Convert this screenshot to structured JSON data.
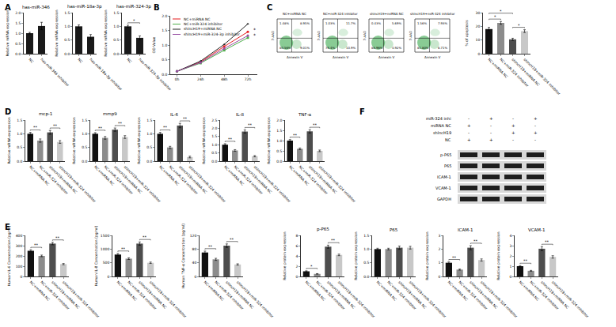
{
  "panel_labels": [
    "A",
    "B",
    "C",
    "D",
    "E",
    "F"
  ],
  "chart_data": [
    {
      "type": "bar",
      "title": "has-miR-346",
      "y_label": "Relative mRNA expression",
      "categories": [
        "NC",
        "has-miR-346 inhibitor"
      ],
      "values": [
        1.0,
        1.35
      ],
      "errors": [
        0.04,
        0.18
      ],
      "colors": [
        "#1a1a1a",
        "#1a1a1a"
      ],
      "ylim": [
        0,
        2
      ],
      "yticks": [
        {
          "value": 0,
          "label": "0.0"
        },
        0.5,
        {
          "value": 1,
          "label": "1.0"
        },
        1.5,
        {
          "value": 2,
          "label": "2.0"
        }
      ],
      "grid": false,
      "comparisons": []
    },
    {
      "type": "bar",
      "title": "has-miR-18a-3p",
      "y_label": "Relative mRNA expression",
      "categories": [
        "NC",
        "has-miR-18a-3p inhibitor"
      ],
      "values": [
        1.0,
        0.62
      ],
      "errors": [
        0.05,
        0.08
      ],
      "colors": [
        "#1a1a1a",
        "#1a1a1a"
      ],
      "ylim": [
        0,
        1.5
      ],
      "yticks": [
        {
          "value": 0,
          "label": "0.0"
        },
        0.5,
        {
          "value": 1,
          "label": "1.0"
        },
        1.5
      ],
      "grid": false,
      "comparisons": []
    },
    {
      "type": "bar",
      "title": "has-miR-324-3p",
      "y_label": "Relative mRNA expression",
      "categories": [
        "NC",
        "has-miR-324-3p inhibitor"
      ],
      "values": [
        1.0,
        0.58
      ],
      "errors": [
        0.04,
        0.07
      ],
      "colors": [
        "#1a1a1a",
        "#1a1a1a"
      ],
      "ylim": [
        0,
        1.5
      ],
      "yticks": [
        {
          "value": 0,
          "label": "0.0"
        },
        0.5,
        {
          "value": 1,
          "label": "1.0"
        },
        1.5
      ],
      "grid": false,
      "comparisons": [
        {
          "pair": [
            0,
            1
          ],
          "label": "*"
        }
      ]
    },
    {
      "type": "line",
      "y_label": "OD Value",
      "categories": [
        "0h",
        "24h",
        "48h",
        "72h"
      ],
      "series": [
        {
          "name": "NC+miRNA NC",
          "color": "#e41a1c",
          "marker": "circle",
          "values": [
            0.1,
            0.42,
            0.95,
            1.45
          ]
        },
        {
          "name": "NC+miR-324 inhibitor",
          "color": "#4daf4a",
          "marker": "square",
          "values": [
            0.1,
            0.38,
            0.82,
            1.25
          ]
        },
        {
          "name": "shlncH19+miRNA NC",
          "color": "#222222",
          "marker": "triangle-up",
          "values": [
            0.1,
            0.45,
            1.02,
            1.72
          ]
        },
        {
          "name": "shlncH19+miR-324-3p inhibitor",
          "color": "#984ea3",
          "marker": "diamond",
          "values": [
            0.1,
            0.4,
            0.88,
            1.32
          ]
        }
      ],
      "ylim": [
        0,
        2
      ],
      "yticks": [
        {
          "value": 0,
          "label": "0.0"
        },
        0.5,
        {
          "value": 1,
          "label": "1.0"
        },
        1.5,
        {
          "value": 2,
          "label": "2.0"
        }
      ],
      "grid": false,
      "legend": "upper left",
      "comparisons": [
        {
          "between": [
            0,
            1
          ],
          "label": "*"
        },
        {
          "between": [
            2,
            3
          ],
          "label": "*"
        }
      ]
    },
    {
      "type": "bar",
      "y_label": "% of apoptosis",
      "categories": [
        "NC+miRNA NC",
        "NC+miR-324 inhibitor",
        "shlncH19+miRNA NC",
        "shlncH19+miR-324 inhibitor"
      ],
      "values": [
        18,
        22.5,
        10.5,
        16.5
      ],
      "errors": [
        1.2,
        1.0,
        0.8,
        1.0
      ],
      "colors": [
        "#111111",
        "#8c8c8c",
        "#4d4d4d",
        "#c8c8c8"
      ],
      "ylim": [
        0,
        30
      ],
      "yticks": [
        0,
        10,
        20,
        30
      ],
      "grid": false,
      "comparisons": [
        {
          "pair": [
            0,
            1
          ],
          "label": "*"
        },
        {
          "pair": [
            2,
            3
          ],
          "label": "*"
        },
        {
          "pair": [
            0,
            2
          ],
          "label": "*"
        }
      ]
    },
    {
      "type": "bar",
      "title": "mcp-1",
      "y_label": "Relative mRNA expression",
      "categories": [
        "NC+miRNA NC",
        "NC+miR-324 inhibitor",
        "shlncH19+miRNA NC",
        "shlncH19+miR-324 inhibitor"
      ],
      "values": [
        1.0,
        0.75,
        1.05,
        0.7
      ],
      "errors": [
        0.05,
        0.06,
        0.07,
        0.05
      ],
      "colors": [
        "#111111",
        "#8c8c8c",
        "#4d4d4d",
        "#c8c8c8"
      ],
      "ylim": [
        0,
        1.5
      ],
      "yticks": [
        {
          "value": 0,
          "label": "0.0"
        },
        0.5,
        {
          "value": 1,
          "label": "1.0"
        },
        1.5
      ],
      "grid": false,
      "comparisons": [
        {
          "pair": [
            0,
            1
          ],
          "label": "**"
        },
        {
          "pair": [
            2,
            3
          ],
          "label": "**"
        }
      ]
    },
    {
      "type": "bar",
      "title": "mmp9",
      "y_label": "Relative mRNA expression",
      "categories": [
        "NC+miRNA NC",
        "NC+miR-324 inhibitor",
        "shlncH19+miRNA NC",
        "shlncH19+miR-324 inhibitor"
      ],
      "values": [
        1.0,
        0.85,
        1.15,
        0.88
      ],
      "errors": [
        0.04,
        0.05,
        0.06,
        0.05
      ],
      "colors": [
        "#111111",
        "#8c8c8c",
        "#4d4d4d",
        "#c8c8c8"
      ],
      "ylim": [
        0,
        1.5
      ],
      "yticks": [
        {
          "value": 0,
          "label": "0.0"
        },
        0.5,
        {
          "value": 1,
          "label": "1.0"
        },
        1.5
      ],
      "grid": false,
      "comparisons": [
        {
          "pair": [
            0,
            1
          ],
          "label": "**"
        },
        {
          "pair": [
            2,
            3
          ],
          "label": "**"
        }
      ]
    },
    {
      "type": "bar",
      "title": "IL-6",
      "y_label": "Relative mRNA expression",
      "categories": [
        "NC+miRNA NC",
        "NC+miR-324 inhibitor",
        "shlncH19+miRNA NC",
        "shlncH19+miR-324 inhibitor"
      ],
      "values": [
        1.0,
        0.5,
        1.3,
        0.15
      ],
      "errors": [
        0.05,
        0.04,
        0.08,
        0.03
      ],
      "colors": [
        "#111111",
        "#8c8c8c",
        "#4d4d4d",
        "#c8c8c8"
      ],
      "ylim": [
        0,
        1.5
      ],
      "yticks": [
        {
          "value": 0,
          "label": "0.0"
        },
        0.5,
        {
          "value": 1,
          "label": "1.0"
        },
        1.5
      ],
      "grid": false,
      "comparisons": [
        {
          "pair": [
            0,
            1
          ],
          "label": "**"
        },
        {
          "pair": [
            2,
            3
          ],
          "label": "**"
        }
      ]
    },
    {
      "type": "bar",
      "title": "IL-8",
      "y_label": "Relative mRNA expression",
      "categories": [
        "NC+miRNA NC",
        "NC+miR-324 inhibitor",
        "shlncH19+miRNA NC",
        "shlncH19+miR-324 inhibitor"
      ],
      "values": [
        1.0,
        0.65,
        1.8,
        0.3
      ],
      "errors": [
        0.06,
        0.05,
        0.1,
        0.04
      ],
      "colors": [
        "#111111",
        "#8c8c8c",
        "#4d4d4d",
        "#c8c8c8"
      ],
      "ylim": [
        0,
        2.5
      ],
      "yticks": [
        {
          "value": 0,
          "label": "0.0"
        },
        0.5,
        {
          "value": 1,
          "label": "1.0"
        },
        1.5,
        {
          "value": 2,
          "label": "2.0"
        },
        2.5
      ],
      "grid": false,
      "comparisons": [
        {
          "pair": [
            0,
            1
          ],
          "label": "**"
        },
        {
          "pair": [
            2,
            3
          ],
          "label": "**"
        }
      ]
    },
    {
      "type": "bar",
      "title": "TNF-α",
      "y_label": "Relative mRNA expression",
      "categories": [
        "NC+miRNA NC",
        "NC+miR-324 inhibitor",
        "shlncH19+miRNA NC",
        "shlncH19+miR-324 inhibitor"
      ],
      "values": [
        1.0,
        0.6,
        1.45,
        0.5
      ],
      "errors": [
        0.05,
        0.04,
        0.08,
        0.04
      ],
      "colors": [
        "#111111",
        "#8c8c8c",
        "#4d4d4d",
        "#c8c8c8"
      ],
      "ylim": [
        0,
        2
      ],
      "yticks": [
        {
          "value": 0,
          "label": "0.0"
        },
        0.5,
        {
          "value": 1,
          "label": "1.0"
        },
        1.5,
        {
          "value": 2,
          "label": "2.0"
        }
      ],
      "grid": false,
      "comparisons": [
        {
          "pair": [
            0,
            1
          ],
          "label": "**"
        },
        {
          "pair": [
            2,
            3
          ],
          "label": "**"
        }
      ]
    },
    {
      "type": "bar",
      "y_label": "Human IL-6 Concentration (pg/ml)",
      "categories": [
        "NC+miRNA NC",
        "NC+miR-324 inhibitor",
        "shlncH19+miRNA NC",
        "shlncH19+miR-324 inhibitor"
      ],
      "values": [
        250,
        200,
        320,
        120
      ],
      "errors": [
        10,
        8,
        12,
        6
      ],
      "colors": [
        "#111111",
        "#8c8c8c",
        "#4d4d4d",
        "#c8c8c8"
      ],
      "ylim": [
        0,
        400
      ],
      "yticks": [
        0,
        100,
        200,
        300,
        400
      ],
      "grid": false,
      "comparisons": [
        {
          "pair": [
            0,
            1
          ],
          "label": "**"
        },
        {
          "pair": [
            2,
            3
          ],
          "label": "**"
        }
      ]
    },
    {
      "type": "bar",
      "y_label": "Human IL-8 Concentration (pg/ml)",
      "categories": [
        "NC+miRNA NC",
        "NC+miR-324 inhibitor",
        "shlncH19+miRNA NC",
        "shlncH19+miR-324 inhibitor"
      ],
      "values": [
        800,
        650,
        1200,
        500
      ],
      "errors": [
        40,
        30,
        60,
        25
      ],
      "colors": [
        "#111111",
        "#8c8c8c",
        "#4d4d4d",
        "#c8c8c8"
      ],
      "ylim": [
        0,
        1500
      ],
      "yticks": [
        0,
        500,
        1000,
        1500
      ],
      "grid": false,
      "comparisons": [
        {
          "pair": [
            0,
            1
          ],
          "label": "**"
        },
        {
          "pair": [
            2,
            3
          ],
          "label": "**"
        }
      ]
    },
    {
      "type": "bar",
      "y_label": "Human TNF-α Concentration (pg/ml)",
      "categories": [
        "NC+miRNA NC",
        "NC+miR-324 inhibitor",
        "shlncH19+miRNA NC",
        "shlncH19+miR-324 inhibitor"
      ],
      "values": [
        70,
        50,
        90,
        35
      ],
      "errors": [
        4,
        3,
        5,
        2
      ],
      "colors": [
        "#111111",
        "#8c8c8c",
        "#4d4d4d",
        "#c8c8c8"
      ],
      "ylim": [
        0,
        120
      ],
      "yticks": [
        0,
        40,
        80,
        120
      ],
      "grid": false,
      "comparisons": [
        {
          "pair": [
            0,
            1
          ],
          "label": "**"
        },
        {
          "pair": [
            2,
            3
          ],
          "label": "**"
        }
      ]
    },
    {
      "type": "bar",
      "title": "p-P65",
      "y_label": "Relative protein expression",
      "categories": [
        "NC+miRNA NC",
        "NC+miR-324 inhibitor",
        "shlncH19+miRNA NC",
        "shlncH19+miR-324 inhibitor"
      ],
      "values": [
        1.0,
        0.5,
        5.8,
        4.2
      ],
      "errors": [
        0.1,
        0.05,
        0.3,
        0.15
      ],
      "colors": [
        "#111111",
        "#8c8c8c",
        "#4d4d4d",
        "#c8c8c8"
      ],
      "ylim": [
        0,
        8
      ],
      "yticks": [
        0,
        2,
        4,
        6,
        8
      ],
      "grid": false,
      "comparisons": [
        {
          "pair": [
            0,
            1
          ],
          "label": "*"
        },
        {
          "pair": [
            2,
            3
          ],
          "label": "**"
        }
      ]
    },
    {
      "type": "bar",
      "title": "P65",
      "y_label": "Relative protein expression",
      "categories": [
        "NC+miRNA NC",
        "NC+miR-324 inhibitor",
        "shlncH19+miRNA NC",
        "shlncH19+miR-324 inhibitor"
      ],
      "values": [
        1.0,
        1.0,
        1.05,
        1.05
      ],
      "errors": [
        0.03,
        0.03,
        0.06,
        0.05
      ],
      "colors": [
        "#111111",
        "#8c8c8c",
        "#4d4d4d",
        "#c8c8c8"
      ],
      "ylim": [
        0,
        1.5
      ],
      "yticks": [
        {
          "value": 0,
          "label": "0.0"
        },
        0.5,
        {
          "value": 1,
          "label": "1.0"
        },
        1.5
      ],
      "grid": false,
      "comparisons": []
    },
    {
      "type": "bar",
      "title": "ICAM-1",
      "y_label": "Relative protein expression",
      "categories": [
        "NC+miRNA NC",
        "NC+miR-324 inhibitor",
        "shlncH19+miRNA NC",
        "shlncH19+miR-324 inhibitor"
      ],
      "values": [
        1.0,
        0.5,
        2.1,
        1.2
      ],
      "errors": [
        0.06,
        0.04,
        0.15,
        0.08
      ],
      "colors": [
        "#111111",
        "#8c8c8c",
        "#4d4d4d",
        "#c8c8c8"
      ],
      "ylim": [
        0,
        3
      ],
      "yticks": [
        0,
        1,
        2,
        3
      ],
      "grid": false,
      "comparisons": [
        {
          "pair": [
            0,
            1
          ],
          "label": "**"
        },
        {
          "pair": [
            2,
            3
          ],
          "label": "**"
        }
      ]
    },
    {
      "type": "bar",
      "title": "VCAM-1",
      "y_label": "Relative protein expression",
      "categories": [
        "NC+miRNA NC",
        "NC+miR-324 inhibitor",
        "shlncH19+miRNA NC",
        "shlncH19+miR-324 inhibitor"
      ],
      "values": [
        1.0,
        0.55,
        2.7,
        1.9
      ],
      "errors": [
        0.05,
        0.04,
        0.2,
        0.12
      ],
      "colors": [
        "#111111",
        "#8c8c8c",
        "#4d4d4d",
        "#c8c8c8"
      ],
      "ylim": [
        0,
        4
      ],
      "yticks": [
        0,
        1,
        2,
        3,
        4
      ],
      "grid": false,
      "comparisons": [
        {
          "pair": [
            0,
            1
          ],
          "label": "**"
        },
        {
          "pair": [
            2,
            3
          ],
          "label": "**"
        }
      ]
    }
  ],
  "flow_cytometry": {
    "x_label": "Annexin V",
    "y_label": "7-AAD",
    "plots": [
      {
        "title": "NC+miRNA NC",
        "upper_left": "1.48%",
        "upper_right": "8.95%",
        "lower_left": "80.56%",
        "lower_right": "9.01%"
      },
      {
        "title": "NC+miR-324 inhibitor",
        "upper_left": "1.03%",
        "upper_right": "11.7%",
        "lower_left": "76.4%",
        "lower_right": "10.9%"
      },
      {
        "title": "shlncH19+miRNA NC",
        "upper_left": "0.43%",
        "upper_right": "5.69%",
        "lower_left": "88.96%",
        "lower_right": "4.92%"
      },
      {
        "title": "shlncH19+miR-324 inhibitor",
        "upper_left": "1.56%",
        "upper_right": "7.93%",
        "lower_left": "81.80%",
        "lower_right": "8.71%"
      }
    ]
  },
  "western_blot": {
    "conditions": [
      {
        "label": "miR-324 inhi",
        "signs": [
          "-",
          "+",
          "-",
          "+"
        ]
      },
      {
        "label": "miRNA NC",
        "signs": [
          "+",
          "-",
          "+",
          "-"
        ]
      },
      {
        "label": "shlncH19",
        "signs": [
          "-",
          "-",
          "+",
          "+"
        ]
      },
      {
        "label": "NC",
        "signs": [
          "+",
          "+",
          "-",
          "-"
        ]
      }
    ],
    "bands": [
      "p-P65",
      "P65",
      "ICAM-1",
      "VCAM-1",
      "GAPDH"
    ]
  }
}
